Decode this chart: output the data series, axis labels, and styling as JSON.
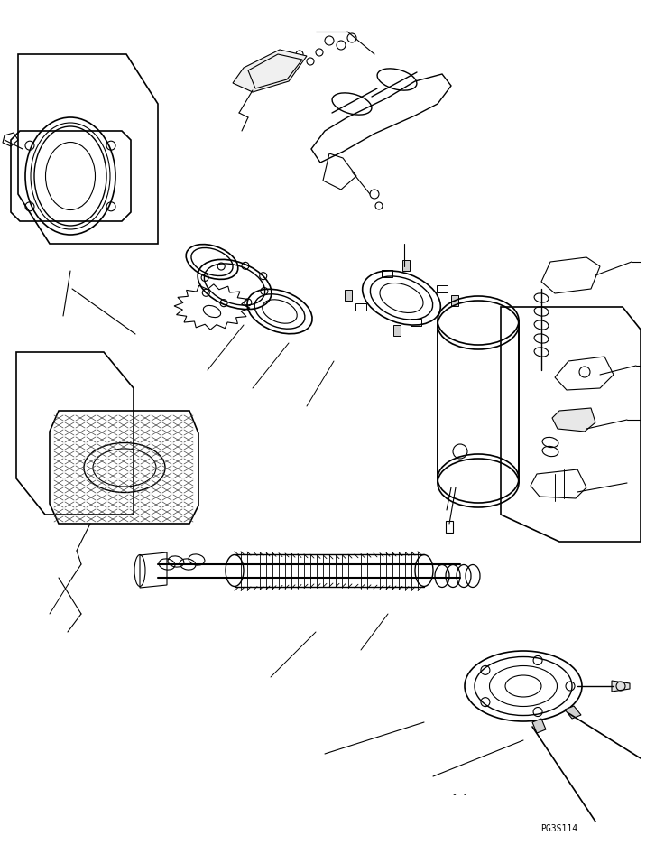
{
  "fig_width": 7.16,
  "fig_height": 9.36,
  "dpi": 100,
  "bg_color": "#ffffff",
  "line_color": "#000000",
  "line_width": 0.8,
  "part_code": "PG3S114",
  "title": "",
  "parts": []
}
